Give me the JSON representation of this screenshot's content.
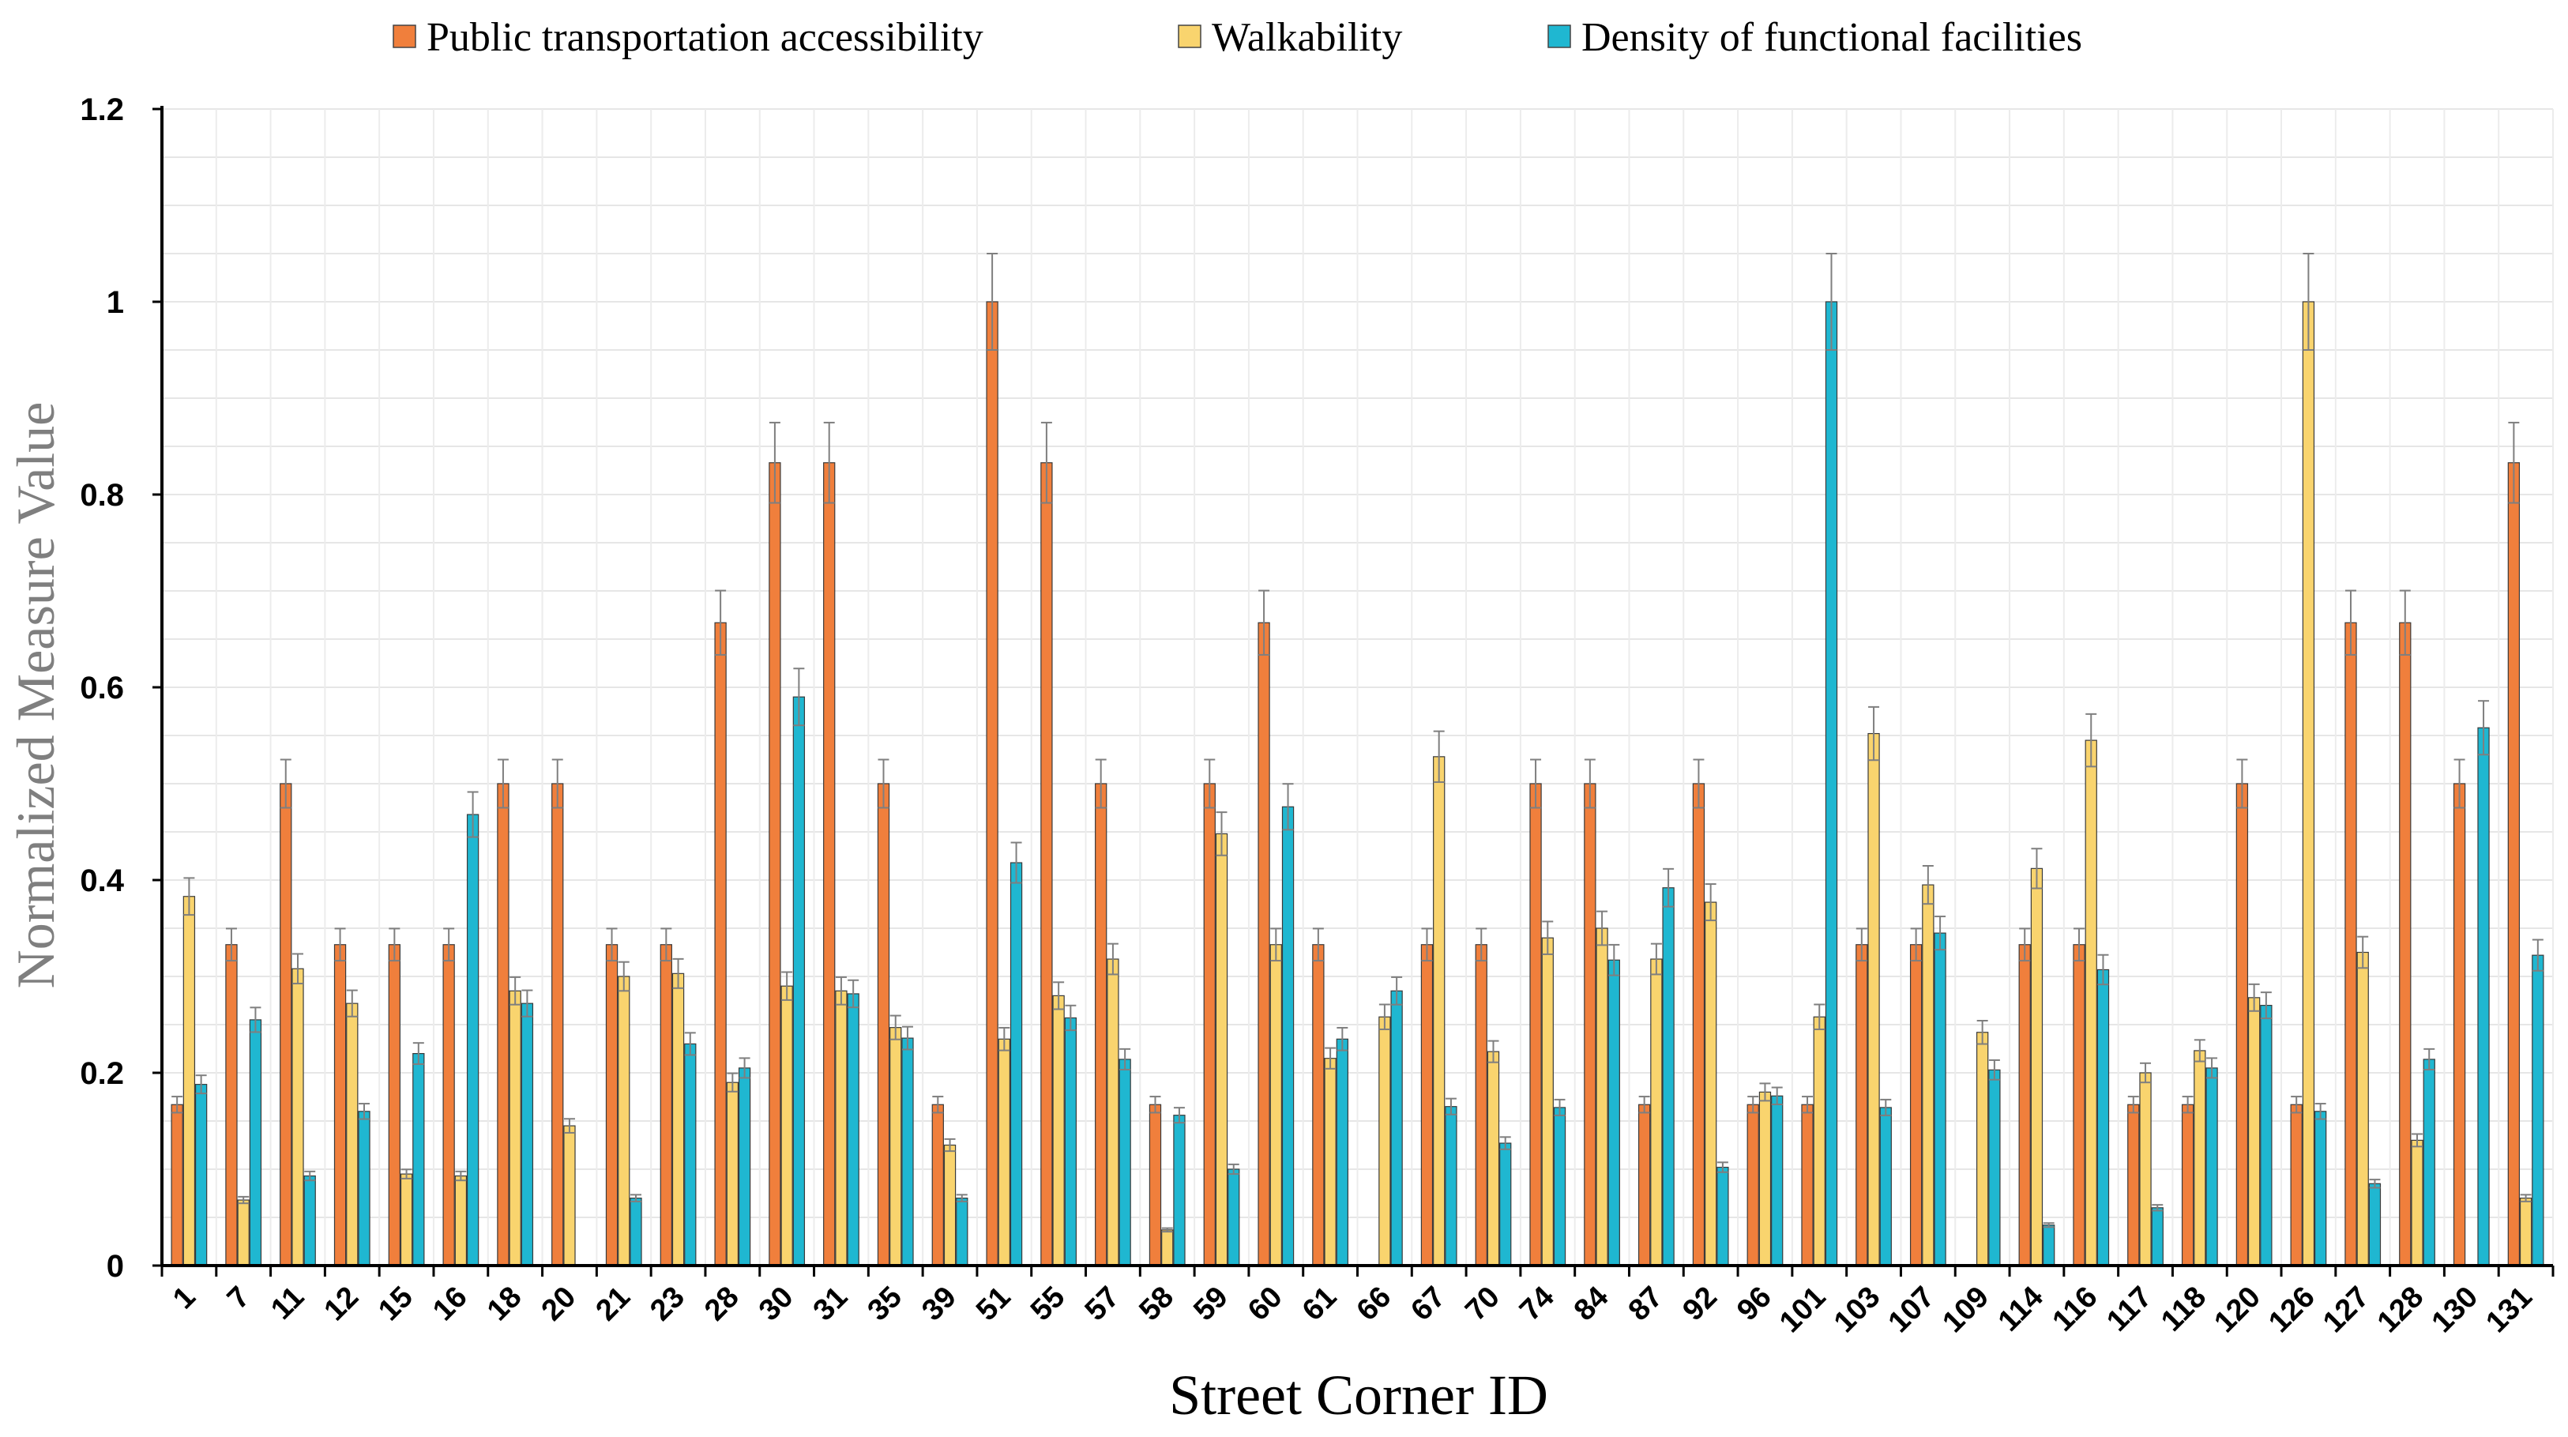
{
  "chart_data": {
    "type": "bar",
    "title": "",
    "xlabel": "Street Corner ID",
    "ylabel": "Normalized Measure Value",
    "ylim": [
      0,
      1.2
    ],
    "yticks": [
      0,
      0.2,
      0.4,
      0.6,
      0.8,
      1,
      1.2
    ],
    "ytick_labels": [
      "0",
      "0.2",
      "0.4",
      "0.6",
      "0.8",
      "1",
      "1.2"
    ],
    "legend_position": "top-center",
    "grid": true,
    "error_bars": true,
    "categories": [
      "1",
      "7",
      "11",
      "12",
      "15",
      "16",
      "18",
      "20",
      "21",
      "23",
      "28",
      "30",
      "31",
      "35",
      "39",
      "51",
      "55",
      "57",
      "58",
      "59",
      "60",
      "61",
      "66",
      "67",
      "70",
      "74",
      "84",
      "87",
      "92",
      "96",
      "101",
      "103",
      "107",
      "109",
      "114",
      "116",
      "117",
      "118",
      "120",
      "126",
      "127",
      "128",
      "130",
      "131"
    ],
    "series": [
      {
        "name": "Public transportation accessibility",
        "color": "#F07F3C",
        "values": [
          0.167,
          0.333,
          0.5,
          0.333,
          0.333,
          0.333,
          0.5,
          0.5,
          0.333,
          0.333,
          0.667,
          0.833,
          0.833,
          0.5,
          0.167,
          1.0,
          0.833,
          0.5,
          0.167,
          0.5,
          0.667,
          0.333,
          0,
          0.333,
          0.333,
          0.5,
          0.5,
          0.167,
          0.5,
          0.167,
          0.167,
          0.333,
          0.333,
          0,
          0.333,
          0.333,
          0.167,
          0.167,
          0.5,
          0.167,
          0.667,
          0.667,
          0.5,
          0.833
        ]
      },
      {
        "name": "Walkability",
        "color": "#F9D46E",
        "values": [
          0.383,
          0.068,
          0.308,
          0.272,
          0.095,
          0.093,
          0.285,
          0.145,
          0.3,
          0.303,
          0.19,
          0.29,
          0.285,
          0.247,
          0.125,
          0.235,
          0.28,
          0.318,
          0.037,
          0.448,
          0.333,
          0.215,
          0.258,
          0.528,
          0.222,
          0.34,
          0.35,
          0.318,
          0.377,
          0.18,
          0.258,
          0.552,
          0.395,
          0.242,
          0.412,
          0.545,
          0.2,
          0.223,
          0.278,
          1.0,
          0.325,
          0.13,
          0,
          0.07
        ]
      },
      {
        "name": "Density of functional facilities",
        "color": "#1FB7D1",
        "values": [
          0.188,
          0.255,
          0.093,
          0.16,
          0.22,
          0.468,
          0.272,
          0,
          0.07,
          0.23,
          0.205,
          0.59,
          0.282,
          0.236,
          0.07,
          0.418,
          0.257,
          0.214,
          0.156,
          0.1,
          0.476,
          0.235,
          0.285,
          0.165,
          0.127,
          0.164,
          0.317,
          0.392,
          0.102,
          0.176,
          1.0,
          0.164,
          0.345,
          0.203,
          0.042,
          0.307,
          0.06,
          0.205,
          0.27,
          0.16,
          0.085,
          0.214,
          0.558,
          0.322
        ]
      }
    ]
  }
}
